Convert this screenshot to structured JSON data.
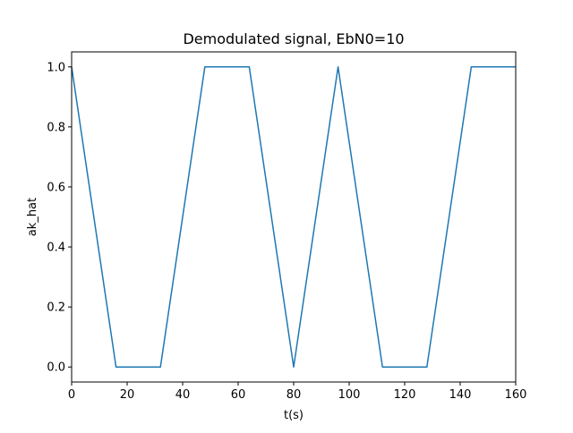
{
  "chart_data": {
    "type": "line",
    "title": "Demodulated signal, EbN0=10",
    "xlabel": "t(s)",
    "ylabel": "ak_hat",
    "xlim": [
      0,
      160
    ],
    "ylim": [
      -0.05,
      1.05
    ],
    "xticks": [
      0,
      20,
      40,
      60,
      80,
      100,
      120,
      140,
      160
    ],
    "xtick_labels": [
      "0",
      "20",
      "40",
      "60",
      "80",
      "100",
      "120",
      "140",
      "160"
    ],
    "yticks": [
      0.0,
      0.2,
      0.4,
      0.6,
      0.8,
      1.0
    ],
    "ytick_labels": [
      "0.0",
      "0.2",
      "0.4",
      "0.6",
      "0.8",
      "1.0"
    ],
    "grid": false,
    "legend": "none",
    "series": [
      {
        "color": "#1f77b4",
        "x": [
          0,
          16,
          32,
          48,
          64,
          80,
          96,
          112,
          128,
          144,
          160
        ],
        "y": [
          1,
          0,
          0,
          1,
          1,
          0,
          1,
          0,
          0,
          1,
          1
        ]
      }
    ]
  }
}
